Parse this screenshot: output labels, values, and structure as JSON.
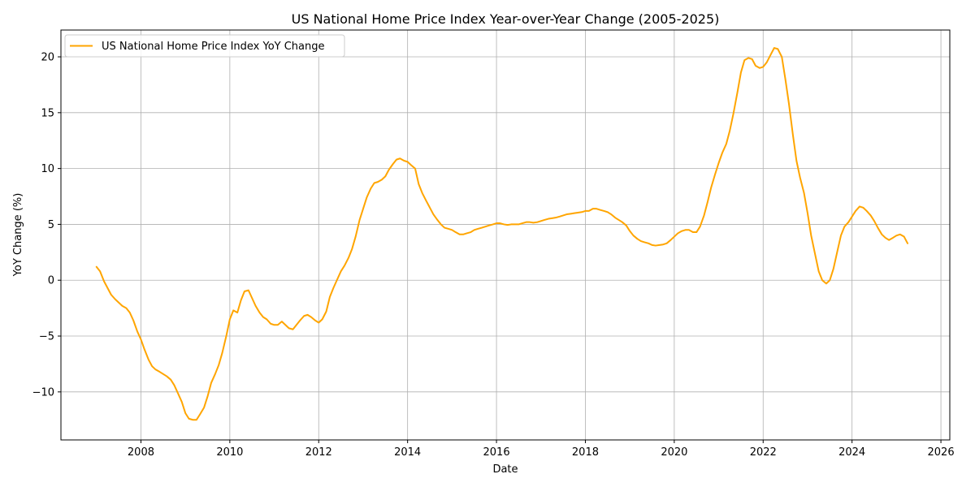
{
  "chart_data": {
    "type": "line",
    "title": "US National Home Price Index Year-over-Year Change (2005-2025)",
    "xlabel": "Date",
    "ylabel": "YoY Change (%)",
    "xlim": [
      2006.2,
      2026.2
    ],
    "ylim": [
      -14.3,
      22.4
    ],
    "x_ticks": [
      2008,
      2010,
      2012,
      2014,
      2016,
      2018,
      2020,
      2022,
      2024,
      2026
    ],
    "x_tick_labels": [
      "2008",
      "2010",
      "2012",
      "2014",
      "2016",
      "2018",
      "2020",
      "2022",
      "2024",
      "2026"
    ],
    "y_ticks": [
      -10,
      -5,
      0,
      5,
      10,
      15,
      20
    ],
    "y_tick_labels": [
      "−10",
      "−5",
      "0",
      "5",
      "10",
      "15",
      "20"
    ],
    "grid": true,
    "legend_position": "top-left",
    "colors": {
      "line": "#FFA500",
      "grid": "#b0b0b0",
      "axes": "#000000"
    },
    "series": [
      {
        "name": "US National Home Price Index YoY Change",
        "color": "#FFA500",
        "points": [
          [
            2007.0,
            1.2
          ],
          [
            2007.08,
            0.8
          ],
          [
            2007.17,
            -0.1
          ],
          [
            2007.25,
            -0.7
          ],
          [
            2007.33,
            -1.3
          ],
          [
            2007.42,
            -1.7
          ],
          [
            2007.5,
            -2.0
          ],
          [
            2007.58,
            -2.3
          ],
          [
            2007.67,
            -2.5
          ],
          [
            2007.75,
            -2.9
          ],
          [
            2007.83,
            -3.6
          ],
          [
            2007.92,
            -4.6
          ],
          [
            2008.0,
            -5.3
          ],
          [
            2008.08,
            -6.2
          ],
          [
            2008.17,
            -7.1
          ],
          [
            2008.25,
            -7.7
          ],
          [
            2008.33,
            -8.0
          ],
          [
            2008.42,
            -8.2
          ],
          [
            2008.5,
            -8.4
          ],
          [
            2008.58,
            -8.6
          ],
          [
            2008.67,
            -8.9
          ],
          [
            2008.75,
            -9.4
          ],
          [
            2008.83,
            -10.1
          ],
          [
            2008.92,
            -10.9
          ],
          [
            2009.0,
            -11.9
          ],
          [
            2009.08,
            -12.4
          ],
          [
            2009.17,
            -12.5
          ],
          [
            2009.25,
            -12.5
          ],
          [
            2009.33,
            -12.0
          ],
          [
            2009.42,
            -11.4
          ],
          [
            2009.5,
            -10.4
          ],
          [
            2009.58,
            -9.2
          ],
          [
            2009.67,
            -8.4
          ],
          [
            2009.75,
            -7.6
          ],
          [
            2009.83,
            -6.5
          ],
          [
            2009.92,
            -5.0
          ],
          [
            2010.0,
            -3.5
          ],
          [
            2010.08,
            -2.7
          ],
          [
            2010.17,
            -2.9
          ],
          [
            2010.25,
            -1.8
          ],
          [
            2010.33,
            -1.0
          ],
          [
            2010.42,
            -0.9
          ],
          [
            2010.5,
            -1.6
          ],
          [
            2010.58,
            -2.3
          ],
          [
            2010.67,
            -2.9
          ],
          [
            2010.75,
            -3.3
          ],
          [
            2010.83,
            -3.5
          ],
          [
            2010.92,
            -3.9
          ],
          [
            2011.0,
            -4.0
          ],
          [
            2011.08,
            -4.0
          ],
          [
            2011.17,
            -3.7
          ],
          [
            2011.25,
            -4.0
          ],
          [
            2011.33,
            -4.3
          ],
          [
            2011.42,
            -4.4
          ],
          [
            2011.5,
            -4.0
          ],
          [
            2011.58,
            -3.6
          ],
          [
            2011.67,
            -3.2
          ],
          [
            2011.75,
            -3.1
          ],
          [
            2011.83,
            -3.3
          ],
          [
            2011.92,
            -3.6
          ],
          [
            2012.0,
            -3.8
          ],
          [
            2012.08,
            -3.5
          ],
          [
            2012.17,
            -2.8
          ],
          [
            2012.25,
            -1.5
          ],
          [
            2012.33,
            -0.7
          ],
          [
            2012.42,
            0.1
          ],
          [
            2012.5,
            0.8
          ],
          [
            2012.58,
            1.3
          ],
          [
            2012.67,
            2.0
          ],
          [
            2012.75,
            2.8
          ],
          [
            2012.83,
            3.9
          ],
          [
            2012.92,
            5.4
          ],
          [
            2013.0,
            6.4
          ],
          [
            2013.08,
            7.4
          ],
          [
            2013.17,
            8.2
          ],
          [
            2013.25,
            8.7
          ],
          [
            2013.33,
            8.8
          ],
          [
            2013.42,
            9.0
          ],
          [
            2013.5,
            9.3
          ],
          [
            2013.58,
            9.9
          ],
          [
            2013.67,
            10.4
          ],
          [
            2013.75,
            10.8
          ],
          [
            2013.83,
            10.9
          ],
          [
            2013.92,
            10.7
          ],
          [
            2014.0,
            10.6
          ],
          [
            2014.08,
            10.3
          ],
          [
            2014.17,
            10.0
          ],
          [
            2014.25,
            8.6
          ],
          [
            2014.33,
            7.8
          ],
          [
            2014.42,
            7.1
          ],
          [
            2014.5,
            6.5
          ],
          [
            2014.58,
            5.9
          ],
          [
            2014.67,
            5.4
          ],
          [
            2014.75,
            5.0
          ],
          [
            2014.83,
            4.7
          ],
          [
            2014.92,
            4.6
          ],
          [
            2015.0,
            4.5
          ],
          [
            2015.08,
            4.3
          ],
          [
            2015.17,
            4.1
          ],
          [
            2015.25,
            4.1
          ],
          [
            2015.33,
            4.2
          ],
          [
            2015.42,
            4.3
          ],
          [
            2015.5,
            4.5
          ],
          [
            2015.58,
            4.6
          ],
          [
            2015.67,
            4.7
          ],
          [
            2015.75,
            4.8
          ],
          [
            2015.83,
            4.9
          ],
          [
            2015.92,
            5.0
          ],
          [
            2016.0,
            5.1
          ],
          [
            2016.08,
            5.1
          ],
          [
            2016.17,
            5.0
          ],
          [
            2016.25,
            4.95
          ],
          [
            2016.33,
            5.0
          ],
          [
            2016.42,
            5.0
          ],
          [
            2016.5,
            5.0
          ],
          [
            2016.58,
            5.1
          ],
          [
            2016.67,
            5.2
          ],
          [
            2016.75,
            5.2
          ],
          [
            2016.83,
            5.15
          ],
          [
            2016.92,
            5.2
          ],
          [
            2017.0,
            5.3
          ],
          [
            2017.08,
            5.4
          ],
          [
            2017.17,
            5.5
          ],
          [
            2017.25,
            5.55
          ],
          [
            2017.33,
            5.6
          ],
          [
            2017.42,
            5.7
          ],
          [
            2017.5,
            5.8
          ],
          [
            2017.58,
            5.9
          ],
          [
            2017.67,
            5.95
          ],
          [
            2017.75,
            6.0
          ],
          [
            2017.83,
            6.05
          ],
          [
            2017.92,
            6.1
          ],
          [
            2018.0,
            6.2
          ],
          [
            2018.08,
            6.2
          ],
          [
            2018.17,
            6.4
          ],
          [
            2018.25,
            6.4
          ],
          [
            2018.33,
            6.3
          ],
          [
            2018.42,
            6.2
          ],
          [
            2018.5,
            6.1
          ],
          [
            2018.58,
            5.9
          ],
          [
            2018.67,
            5.6
          ],
          [
            2018.75,
            5.4
          ],
          [
            2018.83,
            5.2
          ],
          [
            2018.92,
            4.9
          ],
          [
            2019.0,
            4.4
          ],
          [
            2019.08,
            4.0
          ],
          [
            2019.17,
            3.7
          ],
          [
            2019.25,
            3.5
          ],
          [
            2019.33,
            3.4
          ],
          [
            2019.42,
            3.3
          ],
          [
            2019.5,
            3.15
          ],
          [
            2019.58,
            3.1
          ],
          [
            2019.67,
            3.15
          ],
          [
            2019.75,
            3.2
          ],
          [
            2019.83,
            3.3
          ],
          [
            2019.92,
            3.6
          ],
          [
            2020.0,
            3.9
          ],
          [
            2020.08,
            4.2
          ],
          [
            2020.17,
            4.4
          ],
          [
            2020.25,
            4.5
          ],
          [
            2020.33,
            4.5
          ],
          [
            2020.42,
            4.3
          ],
          [
            2020.5,
            4.3
          ],
          [
            2020.58,
            4.8
          ],
          [
            2020.67,
            5.8
          ],
          [
            2020.75,
            7.0
          ],
          [
            2020.83,
            8.3
          ],
          [
            2020.92,
            9.5
          ],
          [
            2021.0,
            10.5
          ],
          [
            2021.08,
            11.4
          ],
          [
            2021.17,
            12.2
          ],
          [
            2021.25,
            13.4
          ],
          [
            2021.33,
            14.9
          ],
          [
            2021.42,
            16.8
          ],
          [
            2021.5,
            18.6
          ],
          [
            2021.58,
            19.7
          ],
          [
            2021.67,
            19.9
          ],
          [
            2021.75,
            19.8
          ],
          [
            2021.83,
            19.2
          ],
          [
            2021.92,
            19.0
          ],
          [
            2022.0,
            19.1
          ],
          [
            2022.08,
            19.5
          ],
          [
            2022.17,
            20.2
          ],
          [
            2022.25,
            20.8
          ],
          [
            2022.33,
            20.7
          ],
          [
            2022.42,
            20.0
          ],
          [
            2022.5,
            18.0
          ],
          [
            2022.58,
            15.8
          ],
          [
            2022.67,
            13.0
          ],
          [
            2022.75,
            10.7
          ],
          [
            2022.83,
            9.2
          ],
          [
            2022.92,
            7.8
          ],
          [
            2023.0,
            6.0
          ],
          [
            2023.08,
            4.0
          ],
          [
            2023.17,
            2.3
          ],
          [
            2023.25,
            0.8
          ],
          [
            2023.33,
            0.0
          ],
          [
            2023.42,
            -0.3
          ],
          [
            2023.5,
            0.0
          ],
          [
            2023.58,
            1.0
          ],
          [
            2023.67,
            2.6
          ],
          [
            2023.75,
            4.0
          ],
          [
            2023.83,
            4.8
          ],
          [
            2023.92,
            5.2
          ],
          [
            2024.0,
            5.7
          ],
          [
            2024.08,
            6.2
          ],
          [
            2024.17,
            6.6
          ],
          [
            2024.25,
            6.5
          ],
          [
            2024.33,
            6.2
          ],
          [
            2024.42,
            5.8
          ],
          [
            2024.5,
            5.3
          ],
          [
            2024.58,
            4.7
          ],
          [
            2024.67,
            4.1
          ],
          [
            2024.75,
            3.8
          ],
          [
            2024.83,
            3.6
          ],
          [
            2024.92,
            3.8
          ],
          [
            2025.0,
            4.0
          ],
          [
            2025.08,
            4.1
          ],
          [
            2025.17,
            3.9
          ],
          [
            2025.25,
            3.3
          ]
        ]
      }
    ]
  }
}
